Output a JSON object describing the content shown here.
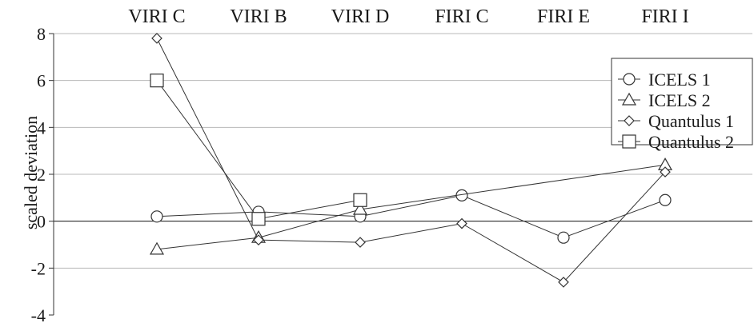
{
  "chart_data": {
    "type": "line",
    "categories": [
      "VIRI C",
      "VIRI B",
      "VIRI D",
      "FIRI C",
      "FIRI E",
      "FIRI I"
    ],
    "ylabel": "scaled deviation",
    "xlabel": "",
    "ylim": [
      -4,
      8
    ],
    "yticks": [
      "-4",
      "-2",
      "0",
      "2",
      "4",
      "6",
      "8"
    ],
    "grid": true,
    "legend_position": "top-right",
    "series": [
      {
        "name": "ICELS 1",
        "marker": "circle",
        "values": [
          0.2,
          0.4,
          0.2,
          1.1,
          -0.7,
          0.9
        ]
      },
      {
        "name": "ICELS 2",
        "marker": "triangle",
        "values": [
          -1.2,
          -0.7,
          0.5,
          null,
          null,
          2.4
        ]
      },
      {
        "name": "Quantulus 1",
        "marker": "diamond",
        "values": [
          7.8,
          -0.8,
          -0.9,
          -0.1,
          -2.6,
          2.1
        ]
      },
      {
        "name": "Quantulus 2",
        "marker": "square",
        "values": [
          6.0,
          0.1,
          0.9,
          null,
          null,
          null
        ]
      }
    ]
  }
}
